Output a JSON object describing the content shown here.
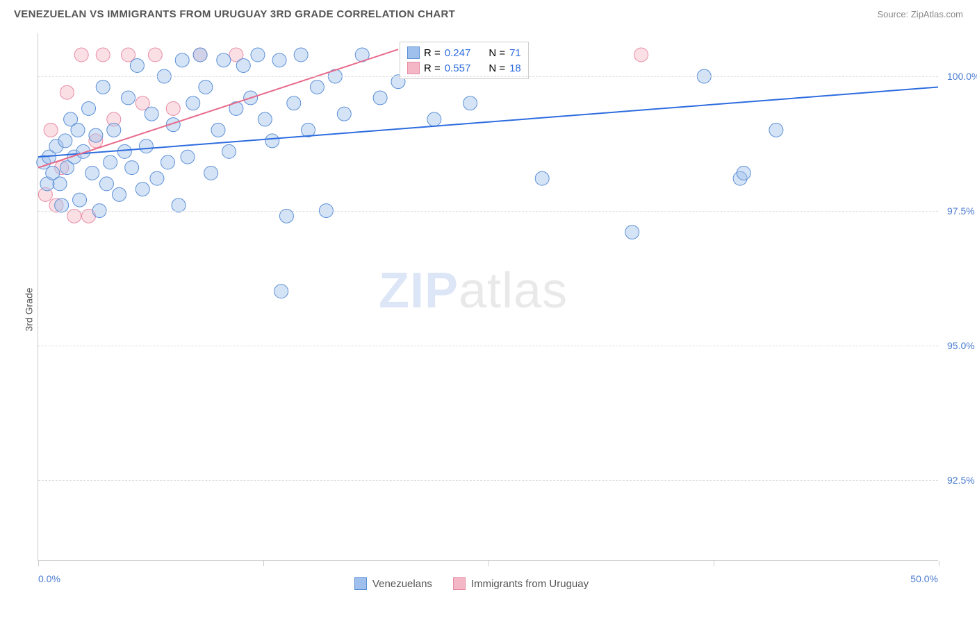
{
  "header": {
    "title": "VENEZUELAN VS IMMIGRANTS FROM URUGUAY 3RD GRADE CORRELATION CHART",
    "source": "Source: ZipAtlas.com"
  },
  "chart": {
    "type": "scatter",
    "ylabel": "3rd Grade",
    "xlim": [
      0,
      50
    ],
    "ylim": [
      91.0,
      100.8
    ],
    "xticks": [
      {
        "pos": 0,
        "label": "0.0%"
      },
      {
        "pos": 12.5,
        "label": ""
      },
      {
        "pos": 25,
        "label": ""
      },
      {
        "pos": 37.5,
        "label": ""
      },
      {
        "pos": 50,
        "label": "50.0%"
      }
    ],
    "yticks": [
      {
        "pos": 92.5,
        "label": "92.5%"
      },
      {
        "pos": 95.0,
        "label": "95.0%"
      },
      {
        "pos": 97.5,
        "label": "97.5%"
      },
      {
        "pos": 100.0,
        "label": "100.0%"
      }
    ],
    "grid_color": "#dddddd",
    "background_color": "#ffffff",
    "marker_radius": 10,
    "marker_opacity": 0.45,
    "line_width": 2,
    "series": [
      {
        "name": "Venezuelans",
        "color_fill": "#9fc0ec",
        "color_stroke": "#5b8fd6",
        "line_color": "#2d6cdf",
        "r_value": "0.247",
        "n_value": "71",
        "trend": {
          "x1": 0,
          "y1": 98.5,
          "x2": 50,
          "y2": 99.8
        },
        "points": [
          [
            0.3,
            98.4
          ],
          [
            0.5,
            98.0
          ],
          [
            0.6,
            98.5
          ],
          [
            0.8,
            98.2
          ],
          [
            1.0,
            98.7
          ],
          [
            1.2,
            98.0
          ],
          [
            1.3,
            97.6
          ],
          [
            1.5,
            98.8
          ],
          [
            1.6,
            98.3
          ],
          [
            1.8,
            99.2
          ],
          [
            2.0,
            98.5
          ],
          [
            2.2,
            99.0
          ],
          [
            2.3,
            97.7
          ],
          [
            2.5,
            98.6
          ],
          [
            2.8,
            99.4
          ],
          [
            3.0,
            98.2
          ],
          [
            3.2,
            98.9
          ],
          [
            3.4,
            97.5
          ],
          [
            3.6,
            99.8
          ],
          [
            3.8,
            98.0
          ],
          [
            4.0,
            98.4
          ],
          [
            4.2,
            99.0
          ],
          [
            4.5,
            97.8
          ],
          [
            4.8,
            98.6
          ],
          [
            5.0,
            99.6
          ],
          [
            5.2,
            98.3
          ],
          [
            5.5,
            100.2
          ],
          [
            5.8,
            97.9
          ],
          [
            6.0,
            98.7
          ],
          [
            6.3,
            99.3
          ],
          [
            6.6,
            98.1
          ],
          [
            7.0,
            100.0
          ],
          [
            7.2,
            98.4
          ],
          [
            7.5,
            99.1
          ],
          [
            7.8,
            97.6
          ],
          [
            8.0,
            100.3
          ],
          [
            8.3,
            98.5
          ],
          [
            8.6,
            99.5
          ],
          [
            9.0,
            100.4
          ],
          [
            9.3,
            99.8
          ],
          [
            9.6,
            98.2
          ],
          [
            10.0,
            99.0
          ],
          [
            10.3,
            100.3
          ],
          [
            10.6,
            98.6
          ],
          [
            11.0,
            99.4
          ],
          [
            11.4,
            100.2
          ],
          [
            11.8,
            99.6
          ],
          [
            12.2,
            100.4
          ],
          [
            12.6,
            99.2
          ],
          [
            13.0,
            98.8
          ],
          [
            13.4,
            100.3
          ],
          [
            13.8,
            97.4
          ],
          [
            14.2,
            99.5
          ],
          [
            14.6,
            100.4
          ],
          [
            15.0,
            99.0
          ],
          [
            13.5,
            96.0
          ],
          [
            15.5,
            99.8
          ],
          [
            16.0,
            97.5
          ],
          [
            16.5,
            100.0
          ],
          [
            17.0,
            99.3
          ],
          [
            18.0,
            100.4
          ],
          [
            19.0,
            99.6
          ],
          [
            20.0,
            99.9
          ],
          [
            22.0,
            99.2
          ],
          [
            24.0,
            99.5
          ],
          [
            28.0,
            98.1
          ],
          [
            33.0,
            97.1
          ],
          [
            37.0,
            100.0
          ],
          [
            39.0,
            98.1
          ],
          [
            39.2,
            98.2
          ],
          [
            41.0,
            99.0
          ]
        ]
      },
      {
        "name": "Immigrants from Uruguay",
        "color_fill": "#f3b7c6",
        "color_stroke": "#e88ba5",
        "line_color": "#e86a8a",
        "r_value": "0.557",
        "n_value": "18",
        "trend": {
          "x1": 0,
          "y1": 98.3,
          "x2": 20,
          "y2": 100.5
        },
        "points": [
          [
            0.4,
            97.8
          ],
          [
            0.7,
            99.0
          ],
          [
            1.0,
            97.6
          ],
          [
            1.3,
            98.3
          ],
          [
            1.6,
            99.7
          ],
          [
            2.0,
            97.4
          ],
          [
            2.4,
            100.4
          ],
          [
            2.8,
            97.4
          ],
          [
            3.2,
            98.8
          ],
          [
            3.6,
            100.4
          ],
          [
            4.2,
            99.2
          ],
          [
            5.0,
            100.4
          ],
          [
            5.8,
            99.5
          ],
          [
            6.5,
            100.4
          ],
          [
            7.5,
            99.4
          ],
          [
            9.0,
            100.4
          ],
          [
            11.0,
            100.4
          ],
          [
            33.5,
            100.4
          ]
        ]
      }
    ],
    "legend_top": {
      "r_label": "R =",
      "n_label": "N ="
    },
    "legend_bottom": [
      {
        "label": "Venezuelans",
        "fill": "#9fc0ec",
        "stroke": "#5b8fd6"
      },
      {
        "label": "Immigrants from Uruguay",
        "fill": "#f3b7c6",
        "stroke": "#e88ba5"
      }
    ],
    "watermark": {
      "zip": "ZIP",
      "atlas": "atlas"
    }
  }
}
